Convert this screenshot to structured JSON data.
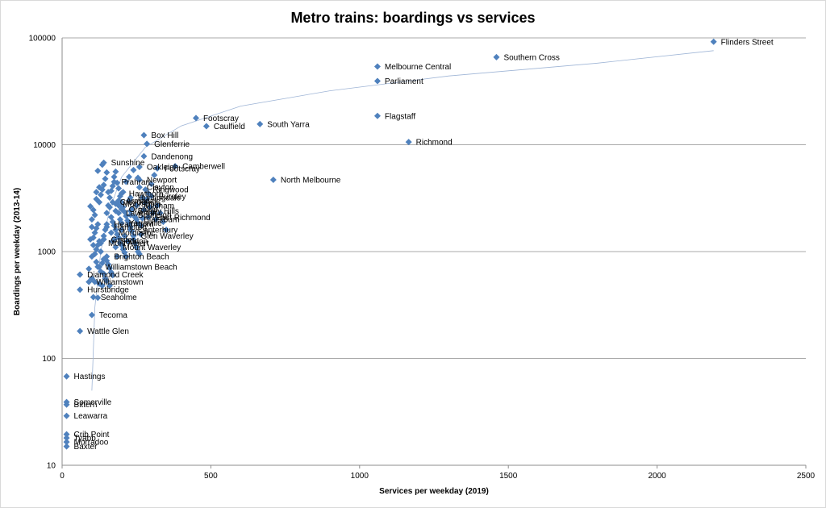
{
  "chart_data": {
    "type": "scatter",
    "title": "Metro trains: boardings vs services",
    "xlabel": "Services per weekday (2019)",
    "ylabel": "Boardings per weekday (2013-14)",
    "xlim": [
      0,
      2500
    ],
    "ylim": [
      10,
      100000
    ],
    "yscale": "log",
    "x_ticks": [
      "0",
      "500",
      "1000",
      "1500",
      "2000",
      "2500"
    ],
    "y_ticks": [
      "10",
      "100",
      "1000",
      "10000",
      "100000"
    ],
    "grid": "horizontal",
    "legend": "none",
    "marker_color": "#4f81bd",
    "trendline_color": "#9fb5d6",
    "labeled_points": [
      {
        "label": "Flinders Street",
        "x": 2190,
        "y": 92000
      },
      {
        "label": "Southern Cross",
        "x": 1460,
        "y": 66000
      },
      {
        "label": "Melbourne Central",
        "x": 1060,
        "y": 54000
      },
      {
        "label": "Parliament",
        "x": 1060,
        "y": 39500
      },
      {
        "label": "Flagstaff",
        "x": 1060,
        "y": 18600
      },
      {
        "label": "Richmond",
        "x": 1165,
        "y": 10600
      },
      {
        "label": "North Melbourne",
        "x": 710,
        "y": 4700
      },
      {
        "label": "South Yarra",
        "x": 665,
        "y": 15600
      },
      {
        "label": "Footscray",
        "x": 450,
        "y": 17800
      },
      {
        "label": "Caulfield",
        "x": 485,
        "y": 14900
      },
      {
        "label": "Box Hill",
        "x": 275,
        "y": 12300
      },
      {
        "label": "Glenferrie",
        "x": 285,
        "y": 10200
      },
      {
        "label": "Sunshine",
        "x": 140,
        "y": 6800
      },
      {
        "label": "Dandenong",
        "x": 275,
        "y": 7800
      },
      {
        "label": "Oakleigh",
        "x": 260,
        "y": 6200
      },
      {
        "label": "Camberwell",
        "x": 380,
        "y": 6300
      },
      {
        "label": "Hurstbridge",
        "x": 60,
        "y": 440
      },
      {
        "label": "Tecoma",
        "x": 100,
        "y": 255
      },
      {
        "label": "Wattle Glen",
        "x": 60,
        "y": 180
      },
      {
        "label": "Hastings",
        "x": 15,
        "y": 68
      },
      {
        "label": "Somerville",
        "x": 15,
        "y": 39
      },
      {
        "label": "Bittern",
        "x": 15,
        "y": 37
      },
      {
        "label": "Leawarra",
        "x": 15,
        "y": 29
      },
      {
        "label": "Crib Point",
        "x": 15,
        "y": 19.5
      },
      {
        "label": "Tyabb",
        "x": 15,
        "y": 18
      },
      {
        "label": "Morradoo",
        "x": 15,
        "y": 16.5
      },
      {
        "label": "Baxter",
        "x": 15,
        "y": 15
      },
      {
        "label": "Diamond Creek",
        "x": 60,
        "y": 610
      },
      {
        "label": "Seaholme",
        "x": 105,
        "y": 375
      },
      {
        "label": "Williamstown Beach",
        "x": 120,
        "y": 720
      },
      {
        "label": "Glen Waverley",
        "x": 240,
        "y": 1400
      },
      {
        "label": "Mount Waverley",
        "x": 180,
        "y": 1100
      },
      {
        "label": "Prahran",
        "x": 175,
        "y": 4500
      },
      {
        "label": "Newport",
        "x": 260,
        "y": 4700
      },
      {
        "label": "Footscray",
        "x": 320,
        "y": 6000
      },
      {
        "label": "Surrey Hills",
        "x": 230,
        "y": 2400
      },
      {
        "label": "Heathmont",
        "x": 150,
        "y": 1800
      },
      {
        "label": "Ringwood",
        "x": 280,
        "y": 3800
      },
      {
        "label": "Mitcham",
        "x": 250,
        "y": 2700
      },
      {
        "label": "East Richmond",
        "x": 290,
        "y": 2100
      },
      {
        "label": "Canterbury",
        "x": 230,
        "y": 1600
      },
      {
        "label": "Ginifer",
        "x": 140,
        "y": 1300
      },
      {
        "label": "Yarraville",
        "x": 200,
        "y": 1850
      },
      {
        "label": "Brighton Beach",
        "x": 150,
        "y": 900
      },
      {
        "label": "Burnley",
        "x": 300,
        "y": 3300
      },
      {
        "label": "Ormond",
        "x": 200,
        "y": 2500
      },
      {
        "label": "Huntingdale",
        "x": 230,
        "y": 3200
      },
      {
        "label": "Clayton",
        "x": 260,
        "y": 4000
      },
      {
        "label": "Mordialloc",
        "x": 165,
        "y": 1500
      },
      {
        "label": "Hampton",
        "x": 150,
        "y": 1700
      },
      {
        "label": "Armadale",
        "x": 190,
        "y": 3000
      },
      {
        "label": "Mont Albert",
        "x": 130,
        "y": 1200
      },
      {
        "label": "Williamstown",
        "x": 90,
        "y": 520
      },
      {
        "label": "Blackburn",
        "x": 250,
        "y": 2000
      },
      {
        "label": "Laverton",
        "x": 190,
        "y": 2300
      },
      {
        "label": "Moorabbin",
        "x": 180,
        "y": 2800
      },
      {
        "label": "Bentleigh",
        "x": 230,
        "y": 2200
      },
      {
        "label": "Seddon",
        "x": 170,
        "y": 1250
      },
      {
        "label": "Croydon",
        "x": 170,
        "y": 2900
      },
      {
        "label": "Hawthorn",
        "x": 200,
        "y": 3500
      }
    ],
    "unlabeled_points": [
      {
        "x": 90,
        "y": 690
      },
      {
        "x": 100,
        "y": 560
      },
      {
        "x": 110,
        "y": 520
      },
      {
        "x": 120,
        "y": 370
      },
      {
        "x": 125,
        "y": 500
      },
      {
        "x": 130,
        "y": 650
      },
      {
        "x": 135,
        "y": 780
      },
      {
        "x": 140,
        "y": 850
      },
      {
        "x": 110,
        "y": 950
      },
      {
        "x": 115,
        "y": 1050
      },
      {
        "x": 120,
        "y": 1150
      },
      {
        "x": 125,
        "y": 1250
      },
      {
        "x": 105,
        "y": 1350
      },
      {
        "x": 110,
        "y": 1500
      },
      {
        "x": 115,
        "y": 1650
      },
      {
        "x": 120,
        "y": 1800
      },
      {
        "x": 100,
        "y": 2000
      },
      {
        "x": 110,
        "y": 2200
      },
      {
        "x": 95,
        "y": 2650
      },
      {
        "x": 105,
        "y": 2450
      },
      {
        "x": 115,
        "y": 3100
      },
      {
        "x": 125,
        "y": 2900
      },
      {
        "x": 130,
        "y": 3400
      },
      {
        "x": 135,
        "y": 3800
      },
      {
        "x": 140,
        "y": 4200
      },
      {
        "x": 150,
        "y": 5500
      },
      {
        "x": 155,
        "y": 3600
      },
      {
        "x": 160,
        "y": 2600
      },
      {
        "x": 165,
        "y": 2100
      },
      {
        "x": 170,
        "y": 1900
      },
      {
        "x": 175,
        "y": 1750
      },
      {
        "x": 180,
        "y": 1600
      },
      {
        "x": 185,
        "y": 1450
      },
      {
        "x": 190,
        "y": 1350
      },
      {
        "x": 195,
        "y": 1200
      },
      {
        "x": 200,
        "y": 1150
      },
      {
        "x": 205,
        "y": 1050
      },
      {
        "x": 210,
        "y": 980
      },
      {
        "x": 215,
        "y": 900
      },
      {
        "x": 150,
        "y": 820
      },
      {
        "x": 155,
        "y": 760
      },
      {
        "x": 160,
        "y": 700
      },
      {
        "x": 165,
        "y": 640
      },
      {
        "x": 170,
        "y": 600
      },
      {
        "x": 145,
        "y": 560
      },
      {
        "x": 135,
        "y": 480
      },
      {
        "x": 130,
        "y": 1000
      },
      {
        "x": 140,
        "y": 1400
      },
      {
        "x": 145,
        "y": 1600
      },
      {
        "x": 150,
        "y": 2300
      },
      {
        "x": 155,
        "y": 2700
      },
      {
        "x": 160,
        "y": 3200
      },
      {
        "x": 165,
        "y": 3700
      },
      {
        "x": 170,
        "y": 4100
      },
      {
        "x": 175,
        "y": 5000
      },
      {
        "x": 180,
        "y": 5600
      },
      {
        "x": 185,
        "y": 4400
      },
      {
        "x": 190,
        "y": 3900
      },
      {
        "x": 195,
        "y": 3300
      },
      {
        "x": 200,
        "y": 2900
      },
      {
        "x": 205,
        "y": 2600
      },
      {
        "x": 210,
        "y": 2350
      },
      {
        "x": 215,
        "y": 2150
      },
      {
        "x": 220,
        "y": 1950
      },
      {
        "x": 225,
        "y": 1800
      },
      {
        "x": 230,
        "y": 1700
      },
      {
        "x": 235,
        "y": 1550
      },
      {
        "x": 240,
        "y": 1300
      },
      {
        "x": 245,
        "y": 1200
      },
      {
        "x": 250,
        "y": 1100
      },
      {
        "x": 255,
        "y": 1000
      },
      {
        "x": 260,
        "y": 950
      },
      {
        "x": 265,
        "y": 1750
      },
      {
        "x": 270,
        "y": 2050
      },
      {
        "x": 275,
        "y": 2450
      },
      {
        "x": 280,
        "y": 2850
      },
      {
        "x": 285,
        "y": 3100
      },
      {
        "x": 290,
        "y": 3500
      },
      {
        "x": 300,
        "y": 4300
      },
      {
        "x": 310,
        "y": 5200
      },
      {
        "x": 320,
        "y": 2700
      },
      {
        "x": 330,
        "y": 2300
      },
      {
        "x": 340,
        "y": 1900
      },
      {
        "x": 350,
        "y": 1600
      },
      {
        "x": 120,
        "y": 5700
      },
      {
        "x": 135,
        "y": 6500
      },
      {
        "x": 145,
        "y": 4800
      },
      {
        "x": 125,
        "y": 4000
      },
      {
        "x": 115,
        "y": 3600
      },
      {
        "x": 100,
        "y": 1700
      },
      {
        "x": 95,
        "y": 1300
      },
      {
        "x": 105,
        "y": 1150
      },
      {
        "x": 100,
        "y": 900
      },
      {
        "x": 115,
        "y": 800
      },
      {
        "x": 125,
        "y": 720
      },
      {
        "x": 140,
        "y": 620
      },
      {
        "x": 150,
        "y": 530
      },
      {
        "x": 160,
        "y": 480
      },
      {
        "x": 175,
        "y": 1300
      },
      {
        "x": 185,
        "y": 900
      },
      {
        "x": 195,
        "y": 2000
      },
      {
        "x": 205,
        "y": 3600
      },
      {
        "x": 215,
        "y": 4500
      },
      {
        "x": 225,
        "y": 3000
      },
      {
        "x": 235,
        "y": 2500
      },
      {
        "x": 245,
        "y": 2100
      },
      {
        "x": 255,
        "y": 1850
      },
      {
        "x": 265,
        "y": 1450
      },
      {
        "x": 225,
        "y": 5000
      },
      {
        "x": 240,
        "y": 5800
      },
      {
        "x": 255,
        "y": 4900
      },
      {
        "x": 270,
        "y": 3200
      },
      {
        "x": 295,
        "y": 2600
      },
      {
        "x": 305,
        "y": 2300
      },
      {
        "x": 315,
        "y": 2000
      },
      {
        "x": 180,
        "y": 2400
      },
      {
        "x": 190,
        "y": 2700
      },
      {
        "x": 200,
        "y": 1600
      },
      {
        "x": 210,
        "y": 1400
      },
      {
        "x": 220,
        "y": 1250
      }
    ],
    "trendline": [
      {
        "x": 100,
        "y": 50
      },
      {
        "x": 110,
        "y": 300
      },
      {
        "x": 130,
        "y": 1000
      },
      {
        "x": 160,
        "y": 2500
      },
      {
        "x": 200,
        "y": 5000
      },
      {
        "x": 280,
        "y": 9500
      },
      {
        "x": 400,
        "y": 15000
      },
      {
        "x": 600,
        "y": 23000
      },
      {
        "x": 900,
        "y": 32000
      },
      {
        "x": 1300,
        "y": 44000
      },
      {
        "x": 1800,
        "y": 58000
      },
      {
        "x": 2190,
        "y": 76000
      }
    ]
  }
}
